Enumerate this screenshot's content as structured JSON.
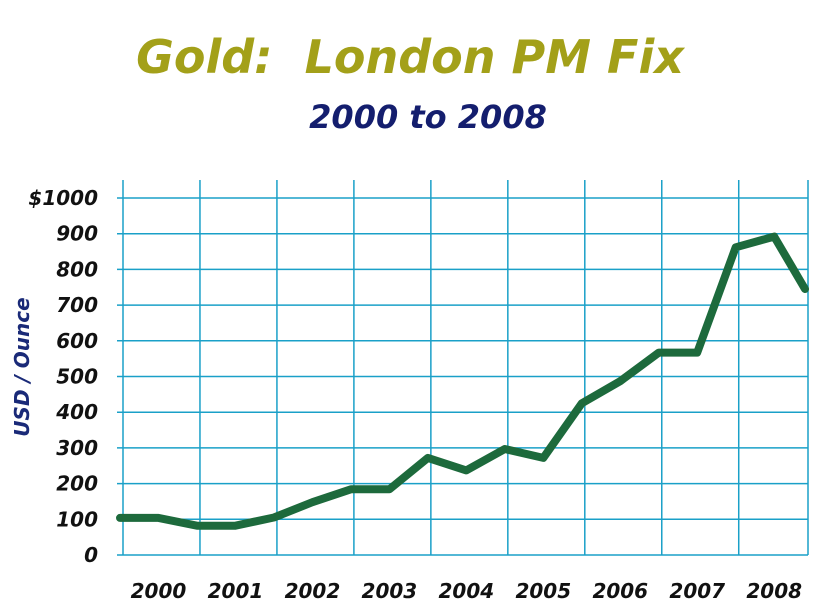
{
  "chart_data": {
    "type": "line",
    "title": "Gold:  London PM Fix",
    "subtitle": "2000 to 2008",
    "ylabel": "USD / Ounce",
    "xlabel": "",
    "categories": [
      "2000",
      "2001",
      "2002",
      "2003",
      "2004",
      "2005",
      "2006",
      "2007",
      "2008"
    ],
    "y_ticks": [
      "0",
      "100",
      "200",
      "300",
      "400",
      "500",
      "600",
      "700",
      "800",
      "900",
      "$1000"
    ],
    "ylim": [
      0,
      1000
    ],
    "xlim": [
      2000,
      2008.9
    ],
    "grid": true,
    "colors": {
      "line": "#1d6a3c",
      "grid": "#1aa0c8",
      "title": "#a3a019",
      "subtitle": "#141e6e"
    },
    "series": [
      {
        "x": [
          2000.0,
          2000.5,
          2001.0,
          2001.5,
          2002.0,
          2002.5,
          2003.0,
          2003.5,
          2004.0,
          2004.5,
          2005.0,
          2005.5,
          2006.0,
          2006.5,
          2007.0,
          2007.5,
          2008.0,
          2008.5,
          2008.9
        ],
        "values": [
          104,
          104,
          82,
          82,
          105,
          148,
          184,
          184,
          272,
          237,
          297,
          272,
          425,
          487,
          567,
          567,
          862,
          892,
          745
        ]
      }
    ]
  }
}
